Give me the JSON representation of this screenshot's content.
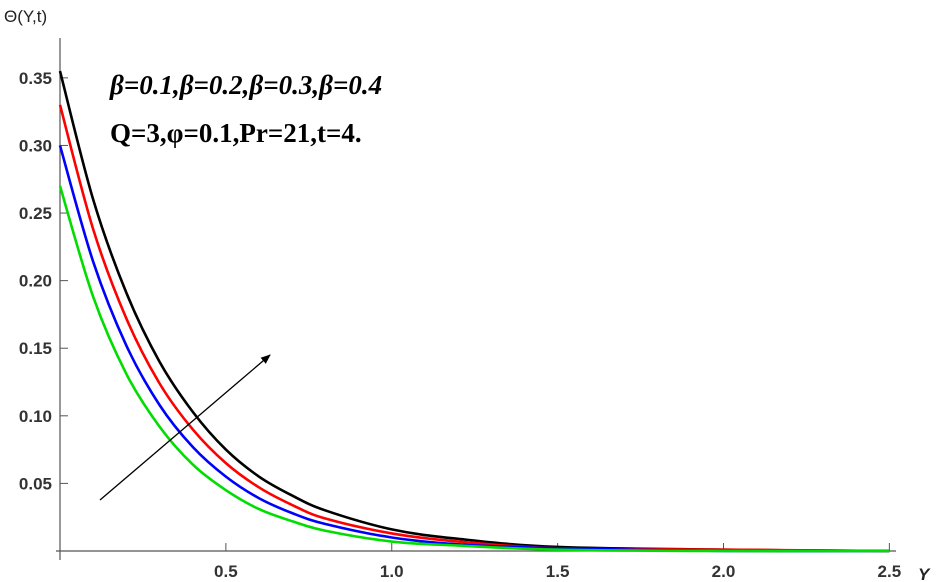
{
  "chart_data": {
    "type": "line",
    "y_label": "Θ(Y,t)",
    "x_label": "Y",
    "annotations": [
      "β=0.1,β=0.2,β=0.3,β=0.4",
      "Q=3,φ=0.1,Pr=21,t=4."
    ],
    "x": [
      0,
      0.1,
      0.2,
      0.3,
      0.4,
      0.5,
      0.6,
      0.7,
      0.8,
      1.0,
      1.2,
      1.5,
      2.0,
      2.5
    ],
    "series": [
      {
        "color": "#000000",
        "values": [
          0.355,
          0.26,
          0.191,
          0.14,
          0.103,
          0.075,
          0.055,
          0.041,
          0.03,
          0.016,
          0.009,
          0.003,
          0.001,
          0.0
        ]
      },
      {
        "color": "#ff0000",
        "values": [
          0.33,
          0.238,
          0.172,
          0.124,
          0.09,
          0.065,
          0.047,
          0.034,
          0.024,
          0.013,
          0.007,
          0.002,
          0.001,
          0.0
        ]
      },
      {
        "color": "#0000ff",
        "values": [
          0.3,
          0.214,
          0.152,
          0.108,
          0.077,
          0.055,
          0.039,
          0.028,
          0.02,
          0.01,
          0.005,
          0.002,
          0.0,
          0.0
        ]
      },
      {
        "color": "#00dd00",
        "values": [
          0.27,
          0.188,
          0.131,
          0.092,
          0.064,
          0.045,
          0.031,
          0.022,
          0.015,
          0.007,
          0.004,
          0.001,
          0.0,
          0.0
        ]
      }
    ],
    "xlim": [
      0,
      2.52
    ],
    "ylim": [
      0,
      0.378
    ],
    "xticks": [
      0.5,
      {
        "value": 1.0,
        "label": "1.0"
      },
      1.5,
      {
        "value": 2.0,
        "label": "2.0"
      },
      2.5
    ],
    "yticks": [
      0.05,
      {
        "value": 0.1,
        "label": "0.10"
      },
      0.15,
      {
        "value": 0.2,
        "label": "0.20"
      },
      0.25,
      {
        "value": 0.3,
        "label": "0.30"
      },
      0.35
    ]
  }
}
